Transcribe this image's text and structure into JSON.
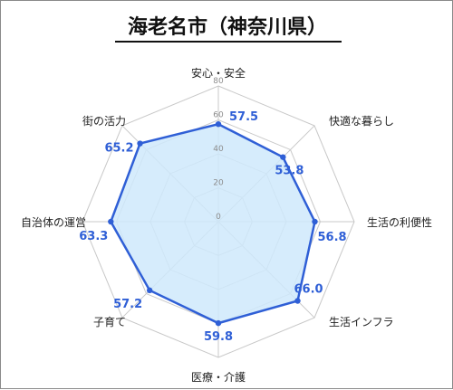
{
  "title": "海老名市（神奈川県）",
  "colors": {
    "series_line": "#2f5fd6",
    "series_fill": "#cfe9fb",
    "value_text": "#2f5fd6",
    "grid": "#c8c8c8",
    "title_underline": "#111111"
  },
  "chart_data": {
    "type": "radar",
    "title": "海老名市（神奈川県）",
    "categories": [
      "安心・安全",
      "快適な暮らし",
      "生活の利便性",
      "生活インフラ",
      "医療・介護",
      "子育て",
      "自治体の運営",
      "街の活力"
    ],
    "series": [
      {
        "values": [
          57.5,
          53.8,
          56.8,
          66.0,
          59.8,
          57.2,
          63.3,
          65.2
        ],
        "value_labels": [
          "57.5",
          "53.8",
          "56.8",
          "66.0",
          "59.8",
          "57.2",
          "63.3",
          "65.2"
        ]
      }
    ],
    "ylim": [
      0,
      80
    ],
    "ticks": [
      0,
      20,
      40,
      60,
      80
    ],
    "tick_labels": [
      "0",
      "20",
      "40",
      "60",
      "80"
    ],
    "grid": true,
    "grid_shape": "octagon"
  }
}
